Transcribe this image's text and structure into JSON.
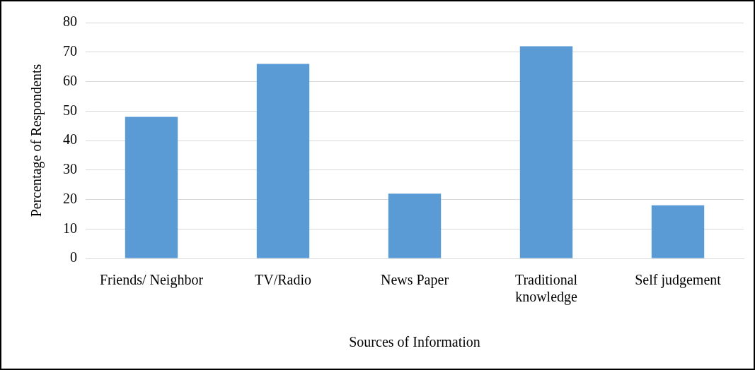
{
  "chart_data": {
    "type": "bar",
    "xlabel": "Sources of Information",
    "ylabel": "Percentage of Respondents",
    "categories": [
      "Friends/ Neighbor",
      "TV/Radio",
      "News Paper",
      "Traditional\nknowledge",
      "Self judgement"
    ],
    "values": [
      48,
      66,
      22,
      72,
      18
    ],
    "color": "#5b9bd5",
    "ylim": [
      0,
      80
    ],
    "yticks": [
      0,
      10,
      20,
      30,
      40,
      50,
      60,
      70,
      80
    ],
    "grid": "y",
    "legend": false
  }
}
